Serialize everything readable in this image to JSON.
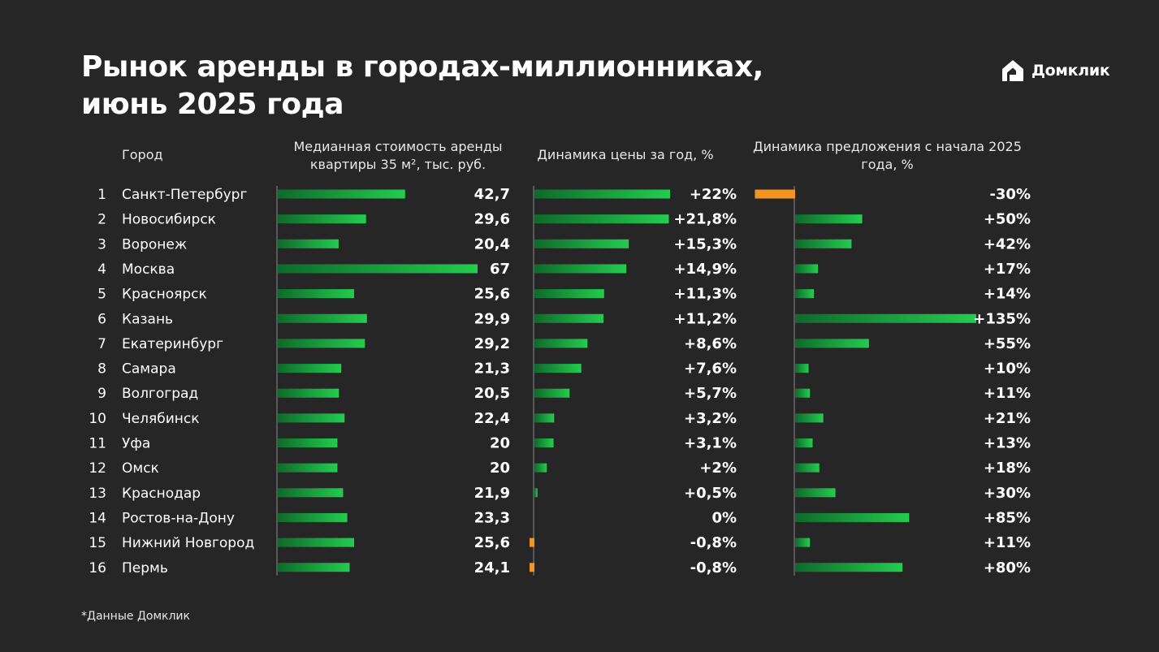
{
  "title_line1": "Рынок аренды в городах-миллионниках,",
  "title_line2": "июнь 2025 года",
  "brand": "Домклик",
  "footnote": "*Данные Домклик",
  "colors": {
    "background": "#262626",
    "positive": "#1ec34a",
    "negative": "#f39323"
  },
  "chart_data": {
    "type": "bar",
    "headers": {
      "city": "Город",
      "rent": "Медианная стоимость аренды квартиры 35 м², тыс. руб.",
      "price_change": "Динамика цены за год, %",
      "supply_change": "Динамика предложения с начала 2025 года, %"
    },
    "rows": [
      {
        "rank": "1",
        "city": "Санкт-Петербург",
        "rent": 42.7,
        "rent_label": "42,7",
        "price_change": 22,
        "price_label": "+22%",
        "supply_change": -30,
        "supply_label": "-30%"
      },
      {
        "rank": "2",
        "city": "Новосибирск",
        "rent": 29.6,
        "rent_label": "29,6",
        "price_change": 21.8,
        "price_label": "+21,8%",
        "supply_change": 50,
        "supply_label": "+50%"
      },
      {
        "rank": "3",
        "city": "Воронеж",
        "rent": 20.4,
        "rent_label": "20,4",
        "price_change": 15.3,
        "price_label": "+15,3%",
        "supply_change": 42,
        "supply_label": "+42%"
      },
      {
        "rank": "4",
        "city": "Москва",
        "rent": 67,
        "rent_label": "67",
        "price_change": 14.9,
        "price_label": "+14,9%",
        "supply_change": 17,
        "supply_label": "+17%"
      },
      {
        "rank": "5",
        "city": "Красноярск",
        "rent": 25.6,
        "rent_label": "25,6",
        "price_change": 11.3,
        "price_label": "+11,3%",
        "supply_change": 14,
        "supply_label": "+14%"
      },
      {
        "rank": "6",
        "city": "Казань",
        "rent": 29.9,
        "rent_label": "29,9",
        "price_change": 11.2,
        "price_label": "+11,2%",
        "supply_change": 135,
        "supply_label": "+135%"
      },
      {
        "rank": "7",
        "city": "Екатеринбург",
        "rent": 29.2,
        "rent_label": "29,2",
        "price_change": 8.6,
        "price_label": "+8,6%",
        "supply_change": 55,
        "supply_label": "+55%"
      },
      {
        "rank": "8",
        "city": "Самара",
        "rent": 21.3,
        "rent_label": "21,3",
        "price_change": 7.6,
        "price_label": "+7,6%",
        "supply_change": 10,
        "supply_label": "+10%"
      },
      {
        "rank": "9",
        "city": "Волгоград",
        "rent": 20.5,
        "rent_label": "20,5",
        "price_change": 5.7,
        "price_label": "+5,7%",
        "supply_change": 11,
        "supply_label": "+11%"
      },
      {
        "rank": "10",
        "city": "Челябинск",
        "rent": 22.4,
        "rent_label": "22,4",
        "price_change": 3.2,
        "price_label": "+3,2%",
        "supply_change": 21,
        "supply_label": "+21%"
      },
      {
        "rank": "11",
        "city": "Уфа",
        "rent": 20,
        "rent_label": "20",
        "price_change": 3.1,
        "price_label": "+3,1%",
        "supply_change": 13,
        "supply_label": "+13%"
      },
      {
        "rank": "12",
        "city": "Омск",
        "rent": 20,
        "rent_label": "20",
        "price_change": 2,
        "price_label": "+2%",
        "supply_change": 18,
        "supply_label": "+18%"
      },
      {
        "rank": "13",
        "city": "Краснодар",
        "rent": 21.9,
        "rent_label": "21,9",
        "price_change": 0.5,
        "price_label": "+0,5%",
        "supply_change": 30,
        "supply_label": "+30%"
      },
      {
        "rank": "14",
        "city": "Ростов-на-Дону",
        "rent": 23.3,
        "rent_label": "23,3",
        "price_change": 0,
        "price_label": "0%",
        "supply_change": 85,
        "supply_label": "+85%"
      },
      {
        "rank": "15",
        "city": "Нижний Новгород",
        "rent": 25.6,
        "rent_label": "25,6",
        "price_change": -0.8,
        "price_label": "-0,8%",
        "supply_change": 11,
        "supply_label": "+11%"
      },
      {
        "rank": "16",
        "city": "Пермь",
        "rent": 24.1,
        "rent_label": "24,1",
        "price_change": -0.8,
        "price_label": "-0,8%",
        "supply_change": 80,
        "supply_label": "+80%"
      }
    ]
  }
}
